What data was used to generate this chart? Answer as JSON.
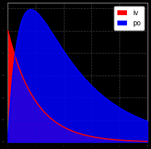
{
  "title": "",
  "xlabel": "",
  "ylabel": "",
  "background_color": "#000000",
  "iv_color": "#ff0000",
  "po_color": "#0000ff",
  "iv_alpha": 1.0,
  "po_alpha": 0.85,
  "legend_loc": "upper right",
  "grid_color": "#555555",
  "grid_style": "--",
  "grid_alpha": 0.7,
  "t_max": 10.0,
  "iv_dose": 1.0,
  "iv_ke": 0.5,
  "po_dose": 1.8,
  "po_ka": 1.2,
  "po_ke": 0.25,
  "po_f": 0.9
}
